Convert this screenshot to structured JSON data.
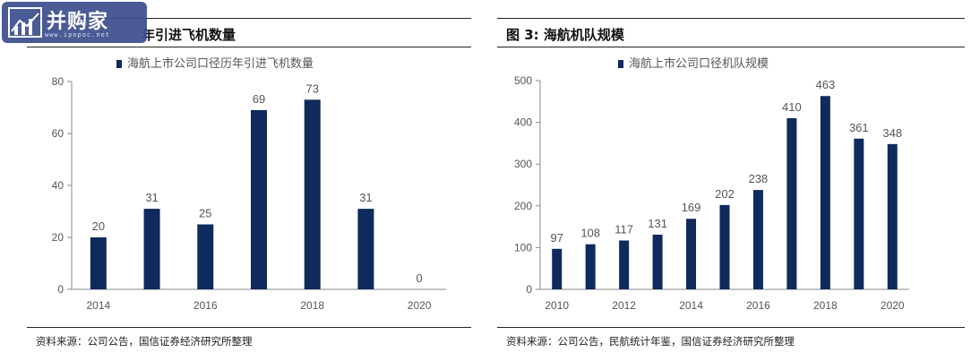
{
  "left_panel": {
    "title": "年引进飞机数量",
    "source": "资料来源：公司公告，国信证券经济研究所整理"
  },
  "right_panel": {
    "title": "图 3:  海航机队规模",
    "source": "资料来源：公司公告，民航统计年鉴，国信证券经济研究所整理"
  },
  "watermark": {
    "brand": "并购家",
    "url": "www.ipopoc.net"
  },
  "colors": {
    "bar": "#0f2a5c",
    "axis": "#888888",
    "text": "#555555"
  },
  "chart_data": [
    {
      "type": "bar",
      "title": "",
      "xlabel": "",
      "ylabel": "",
      "ylim": [
        0,
        80
      ],
      "yticks": [
        0,
        20,
        40,
        60,
        80
      ],
      "x": [
        2014,
        2015,
        2016,
        2017,
        2018,
        2019,
        2020
      ],
      "xtick_labels": [
        "2014",
        "2016",
        "2018",
        "2020"
      ],
      "series": [
        {
          "name": "海航上市公司口径历年引进飞机数量",
          "values": [
            20,
            31,
            25,
            69,
            73,
            31,
            0
          ]
        }
      ],
      "data_labels": true,
      "legend": "top-center",
      "grid": false
    },
    {
      "type": "bar",
      "title": "",
      "xlabel": "",
      "ylabel": "",
      "ylim": [
        0,
        500
      ],
      "yticks": [
        0,
        100,
        200,
        300,
        400,
        500
      ],
      "x": [
        2010,
        2011,
        2012,
        2013,
        2014,
        2015,
        2016,
        2017,
        2018,
        2019,
        2020
      ],
      "xtick_labels": [
        "2010",
        "2012",
        "2014",
        "2016",
        "2018",
        "2020"
      ],
      "series": [
        {
          "name": "海航上市公司口径机队规模",
          "values": [
            97,
            108,
            117,
            131,
            169,
            202,
            238,
            410,
            463,
            361,
            348
          ]
        }
      ],
      "data_labels": true,
      "legend": "top-center",
      "grid": false
    }
  ]
}
